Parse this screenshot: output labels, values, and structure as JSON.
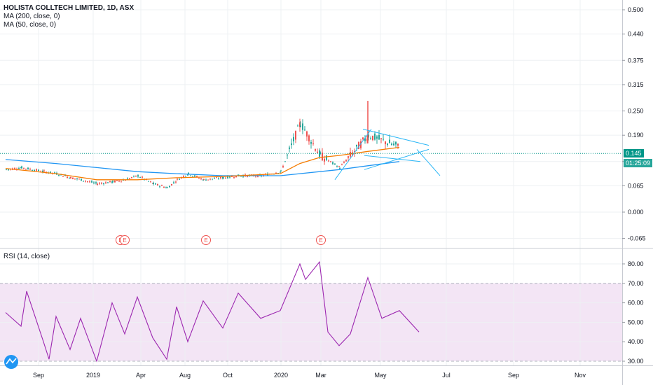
{
  "legend": {
    "title": "HOLISTA COLLTECH LIMITED, 1D, ASX",
    "ma200": "MA (200, close, 0)",
    "ma50": "MA (50, close, 0)",
    "rsi": "RSI (14, close)"
  },
  "price_labels": {
    "last": "0.145",
    "countdown": "01:25:09"
  },
  "colors": {
    "ma200": "#2196f3",
    "ma50": "#f57c00",
    "up": "#26a69a",
    "down": "#ef5350",
    "rsi_line": "#9c27b0",
    "rsi_band": "#f3e5f5",
    "last_price": "#009688",
    "countdown_bg": "#26a69a",
    "trendline": "#29b6f6",
    "earnings": "#ef5350"
  },
  "chart_data": [
    {
      "type": "candlestick",
      "title": "HOLISTA COLLTECH LIMITED, 1D, ASX",
      "x_axis": {
        "tick_labels": [
          "Sep",
          "2019",
          "Apr",
          "Aug",
          "Oct",
          "2020",
          "Mar",
          "May",
          "Jul",
          "Sep",
          "Nov"
        ]
      },
      "y_axis": {
        "ticks": [
          "0.500",
          "0.440",
          "0.375",
          "0.315",
          "0.250",
          "0.190",
          "0.125",
          "0.065",
          "0.000",
          "-0.065"
        ],
        "ylim": [
          -0.09,
          0.52
        ]
      },
      "last_price": 0.145,
      "earnings_markers": [
        "E",
        "E",
        "E",
        "E"
      ],
      "series": [
        {
          "name": "Price (close)",
          "points": [
            [
              "2018-07",
              0.105
            ],
            [
              "2018-08",
              0.11
            ],
            [
              "2018-09",
              0.1
            ],
            [
              "2018-10",
              0.095
            ],
            [
              "2018-11",
              0.085
            ],
            [
              "2018-12",
              0.08
            ],
            [
              "2019-01",
              0.07
            ],
            [
              "2019-02",
              0.075
            ],
            [
              "2019-03",
              0.08
            ],
            [
              "2019-04",
              0.09
            ],
            [
              "2019-05",
              0.07
            ],
            [
              "2019-06",
              0.06
            ],
            [
              "2019-07",
              0.08
            ],
            [
              "2019-08",
              0.095
            ],
            [
              "2019-09",
              0.08
            ],
            [
              "2019-10",
              0.085
            ],
            [
              "2019-11",
              0.09
            ],
            [
              "2019-12",
              0.09
            ],
            [
              "2020-01",
              0.1
            ],
            [
              "2020-02",
              0.22
            ],
            [
              "2020-03",
              0.14
            ],
            [
              "2020-04",
              0.11
            ],
            [
              "2020-05",
              0.19
            ],
            [
              "2020-06",
              0.16
            ]
          ]
        },
        {
          "name": "MA (200, close, 0)",
          "points": [
            [
              "2018-07",
              0.13
            ],
            [
              "2018-10",
              0.12
            ],
            [
              "2019-01",
              0.11
            ],
            [
              "2019-04",
              0.1
            ],
            [
              "2019-07",
              0.095
            ],
            [
              "2019-10",
              0.09
            ],
            [
              "2020-01",
              0.09
            ],
            [
              "2020-04",
              0.105
            ],
            [
              "2020-06",
              0.125
            ]
          ]
        },
        {
          "name": "MA (50, close, 0)",
          "points": [
            [
              "2018-07",
              0.108
            ],
            [
              "2018-10",
              0.095
            ],
            [
              "2019-01",
              0.08
            ],
            [
              "2019-04",
              0.08
            ],
            [
              "2019-07",
              0.085
            ],
            [
              "2019-10",
              0.088
            ],
            [
              "2020-01",
              0.095
            ],
            [
              "2020-02",
              0.12
            ],
            [
              "2020-03",
              0.135
            ],
            [
              "2020-04",
              0.14
            ],
            [
              "2020-05",
              0.15
            ],
            [
              "2020-06",
              0.16
            ]
          ]
        }
      ]
    },
    {
      "type": "line",
      "title": "RSI (14, close)",
      "y_axis": {
        "ticks": [
          "80.00",
          "70.00",
          "60.00",
          "50.00",
          "40.00",
          "30.00"
        ],
        "ylim": [
          27,
          84
        ],
        "band": [
          30,
          70
        ]
      },
      "series": [
        {
          "name": "RSI (14, close)",
          "points": [
            [
              "2018-07",
              55
            ],
            [
              "2018-08",
              48
            ],
            [
              "2018-08b",
              66
            ],
            [
              "2018-09",
              40
            ],
            [
              "2018-09b",
              31
            ],
            [
              "2018-10",
              53
            ],
            [
              "2018-11",
              36
            ],
            [
              "2018-12",
              52
            ],
            [
              "2019-01",
              30
            ],
            [
              "2019-02",
              60
            ],
            [
              "2019-03",
              44
            ],
            [
              "2019-04",
              63
            ],
            [
              "2019-05",
              42
            ],
            [
              "2019-06",
              31
            ],
            [
              "2019-07",
              58
            ],
            [
              "2019-08",
              40
            ],
            [
              "2019-09",
              61
            ],
            [
              "2019-10",
              47
            ],
            [
              "2019-11",
              65
            ],
            [
              "2019-12",
              52
            ],
            [
              "2020-01",
              56
            ],
            [
              "2020-02",
              80
            ],
            [
              "2020-02b",
              72
            ],
            [
              "2020-03",
              81
            ],
            [
              "2020-03b",
              45
            ],
            [
              "2020-04",
              38
            ],
            [
              "2020-04b",
              44
            ],
            [
              "2020-05",
              73
            ],
            [
              "2020-05b",
              52
            ],
            [
              "2020-06",
              56
            ],
            [
              "2020-06b",
              45
            ]
          ]
        }
      ]
    }
  ]
}
